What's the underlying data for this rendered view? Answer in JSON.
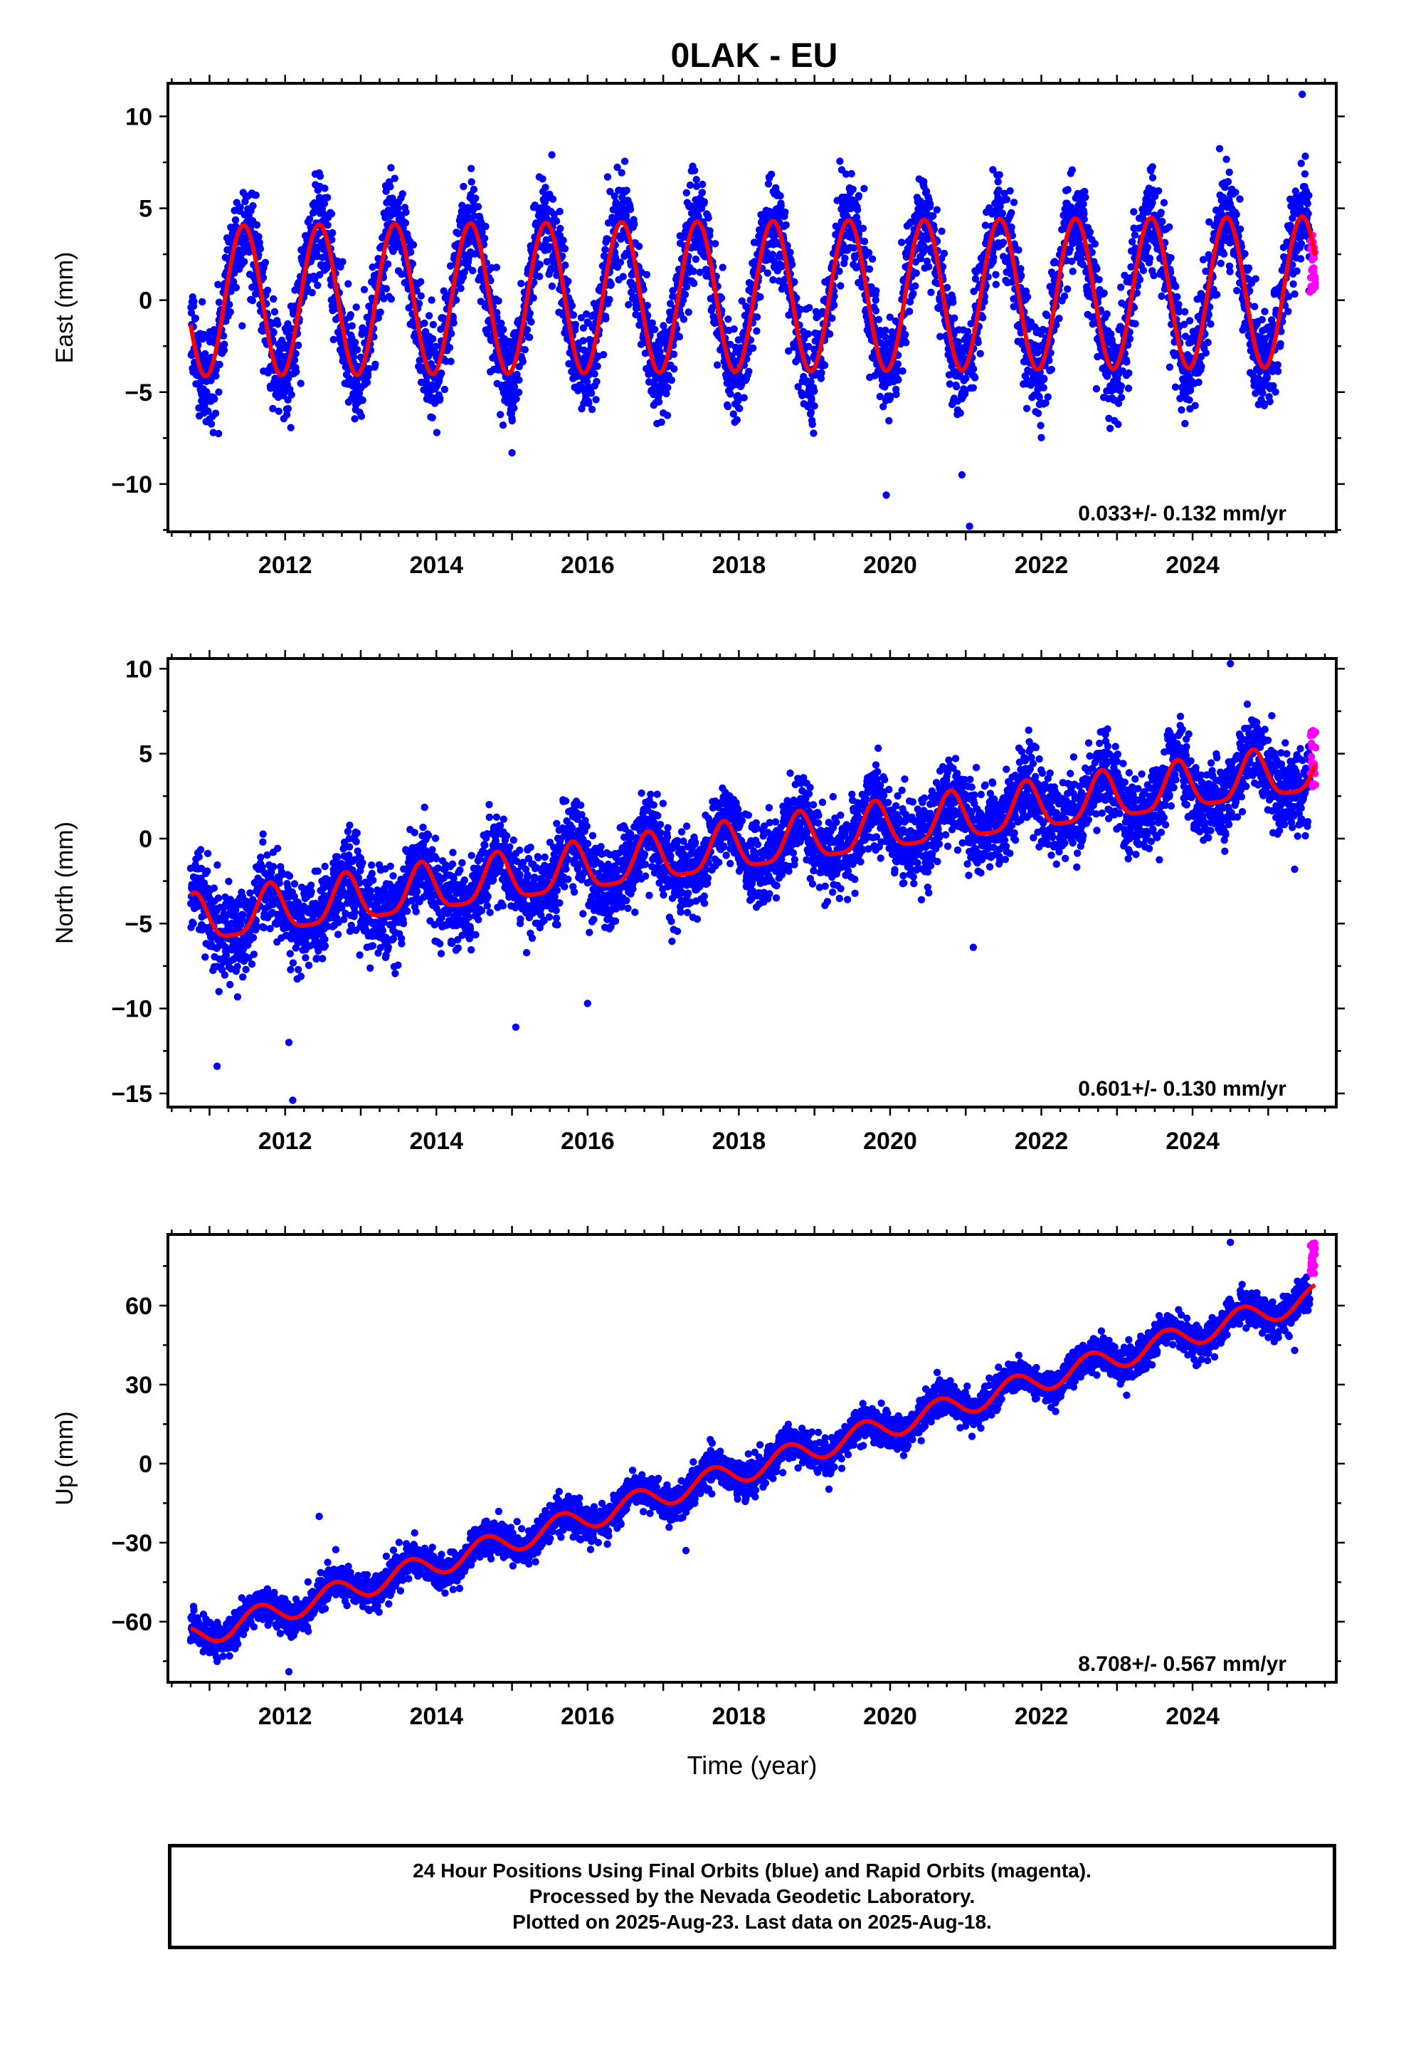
{
  "figure": {
    "title": "0LAK - EU",
    "footer": [
      "24 Hour Positions Using Final Orbits (blue) and Rapid Orbits (magenta).",
      "Processed by the Nevada Geodetic Laboratory.",
      "Plotted on 2025-Aug-23. Last data on 2025-Aug-18."
    ]
  },
  "colors": {
    "final_orbits": "#0000ff",
    "rapid_orbits": "#ff00ff",
    "model": "#ff0000",
    "frame": "#000000"
  },
  "chart_data": [
    {
      "type": "scatter",
      "component": "East",
      "ylabel": "East (mm)",
      "xlabel": "",
      "xlim": [
        2010.45,
        2025.9
      ],
      "ylim": [
        -12.6,
        11.8
      ],
      "xticks": [
        2012,
        2014,
        2016,
        2018,
        2020,
        2022,
        2024
      ],
      "yticks": [
        10,
        5,
        0,
        -5,
        -10
      ],
      "ytick_labels": [
        "10",
        "5",
        "0",
        "−5",
        "−10"
      ],
      "rate_label": "0.033+/- 0.132 mm/yr",
      "model": {
        "offset": 0.2,
        "trend": 0.033,
        "ann_amp": 4.1,
        "phase_peak": 0.45,
        "semi_amp": 0.0,
        "start": 2010.75,
        "end": 2025.62
      },
      "noise_sd": 1.3,
      "outliers": [
        [
          2025.45,
          11.2
        ],
        [
          2021.05,
          -12.3
        ],
        [
          2019.95,
          -10.6
        ],
        [
          2020.95,
          -9.5
        ],
        [
          2015.0,
          -8.3
        ],
        [
          2011.05,
          -7.2
        ]
      ],
      "rapid": {
        "start": 2025.55,
        "end": 2025.63,
        "center": 2.0,
        "spread": 3.2
      }
    },
    {
      "type": "scatter",
      "component": "North",
      "ylabel": "North (mm)",
      "xlabel": "",
      "xlim": [
        2010.45,
        2025.9
      ],
      "ylim": [
        -15.8,
        10.6
      ],
      "xticks": [
        2012,
        2014,
        2016,
        2018,
        2020,
        2022,
        2024
      ],
      "yticks": [
        10,
        5,
        0,
        -5,
        -10,
        -15
      ],
      "ytick_labels": [
        "10",
        "5",
        "0",
        "−5",
        "−10",
        "−15"
      ],
      "rate_label": "0.601+/- 0.130 mm/yr",
      "model": {
        "offset": -0.6,
        "trend": 0.601,
        "ann_amp": 1.4,
        "phase_peak": 0.8,
        "semi_amp": 0.35,
        "start": 2010.75,
        "end": 2025.62
      },
      "noise_sd": 1.2,
      "outliers": [
        [
          2011.1,
          -13.4
        ],
        [
          2012.1,
          -15.4
        ],
        [
          2012.05,
          -12.0
        ],
        [
          2015.05,
          -11.1
        ],
        [
          2016.0,
          -9.7
        ],
        [
          2024.5,
          10.3
        ],
        [
          2021.1,
          -6.4
        ],
        [
          2025.35,
          -1.8
        ]
      ],
      "rapid": {
        "start": 2025.55,
        "end": 2025.63,
        "center": 4.8,
        "spread": 3.6
      }
    },
    {
      "type": "scatter",
      "component": "Up",
      "ylabel": "Up (mm)",
      "xlabel": "Time (year)",
      "xlim": [
        2010.45,
        2025.9
      ],
      "ylim": [
        -83,
        87
      ],
      "xticks": [
        2012,
        2014,
        2016,
        2018,
        2020,
        2022,
        2024
      ],
      "yticks": [
        60,
        30,
        0,
        -30,
        -60
      ],
      "ytick_labels": [
        "60",
        "30",
        "0",
        "−30",
        "−60"
      ],
      "rate_label": "8.708+/- 0.567 mm/yr",
      "model": {
        "offset": -3.0,
        "trend": 8.708,
        "ann_amp": 4.5,
        "phase_peak": 0.65,
        "semi_amp": 0.0,
        "start": 2010.75,
        "end": 2025.62
      },
      "noise_sd": 3.2,
      "outliers": [
        [
          2012.05,
          -79.0
        ],
        [
          2012.45,
          -20.0
        ],
        [
          2017.3,
          -33.0
        ],
        [
          2025.35,
          43.0
        ],
        [
          2024.5,
          84.0
        ]
      ],
      "rapid": {
        "start": 2025.55,
        "end": 2025.63,
        "center": 78.0,
        "spread": 12.0
      }
    }
  ]
}
